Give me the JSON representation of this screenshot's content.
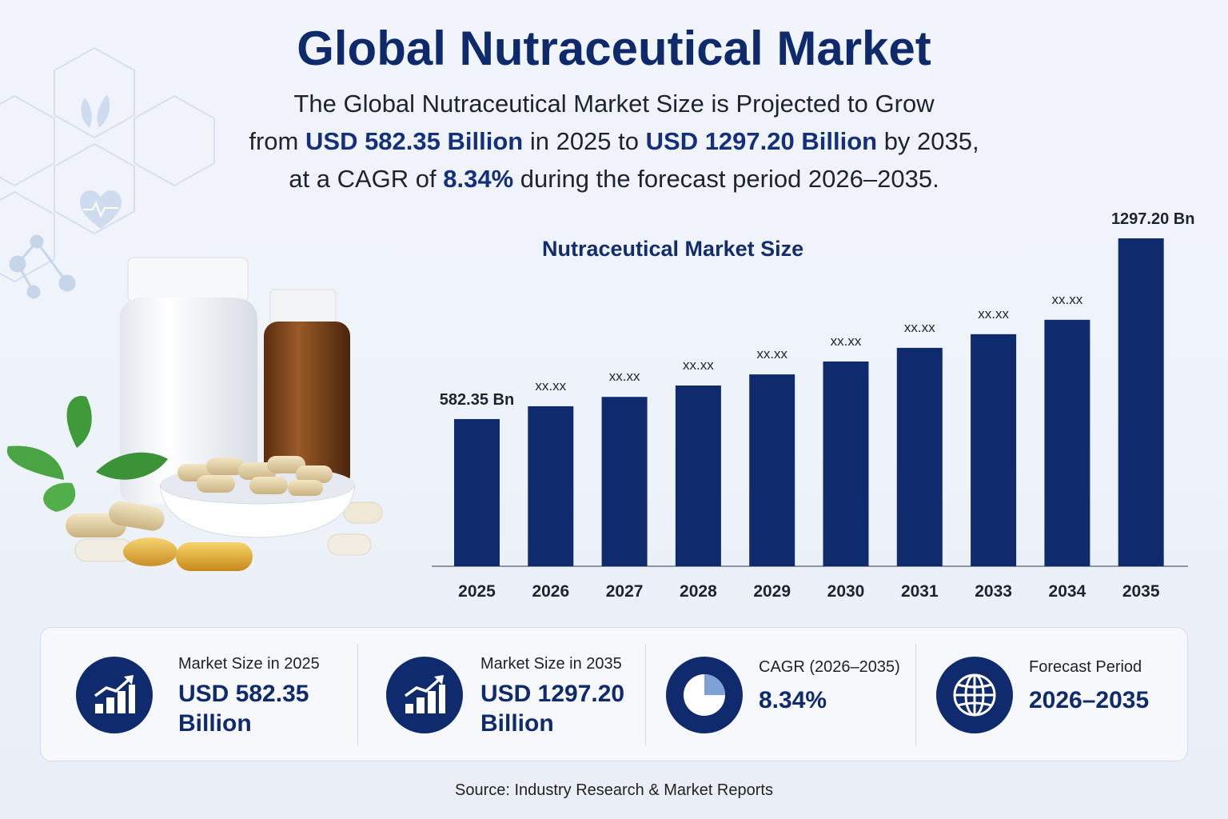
{
  "header": {
    "title": "Global Nutraceutical Market",
    "line1": "The Global Nutraceutical Market Size is Projected to Grow",
    "line2_pre": "from ",
    "line2_hl1": "USD 582.35 Billion",
    "line2_mid": " in 2025 to ",
    "line2_hl2": "USD 1297.20 Billion",
    "line2_post": " by 2035,",
    "line3_pre": "at a CAGR of ",
    "line3_hl": "8.34%",
    "line3_post": " during the forecast period 2026–2035."
  },
  "chart_data": {
    "type": "bar",
    "title": "Nutraceutical Market Size",
    "categories": [
      "2025",
      "2026",
      "2027",
      "2028",
      "2029",
      "2030",
      "2031",
      "2033",
      "2034",
      "2035"
    ],
    "values": [
      582.35,
      633,
      670,
      715,
      759,
      810,
      864,
      918,
      975,
      1297.2
    ],
    "value_labels": [
      "582.35 Bn",
      "xx.xx",
      "xx.xx",
      "xx.xx",
      "xx.xx",
      "xx.xx",
      "xx.xx",
      "xx.xx",
      "xx.xx",
      "1297.20 Bn"
    ],
    "xlabel": "",
    "ylabel": "",
    "grid": false,
    "color": "#0f2b6e"
  },
  "stats": [
    {
      "icon": "bar-growth-icon",
      "label": "Market Size in 2025",
      "value_line1": "USD 582.35",
      "value_line2": "Billion"
    },
    {
      "icon": "bar-growth-icon",
      "label": "Market Size in 2035",
      "value_line1": "USD 1297.20",
      "value_line2": "Billion"
    },
    {
      "icon": "pie-chart-icon",
      "label": "CAGR (2026–2035)",
      "value_line1": "8.34%"
    },
    {
      "icon": "globe-icon",
      "label": "Forecast Period",
      "value_line1": "2026–2035"
    }
  ],
  "footer": {
    "source": "Source: Industry Research & Market Reports"
  },
  "colors": {
    "primary": "#0f2b6e",
    "title": "#0f2a6b",
    "background": "#eef2f9"
  }
}
